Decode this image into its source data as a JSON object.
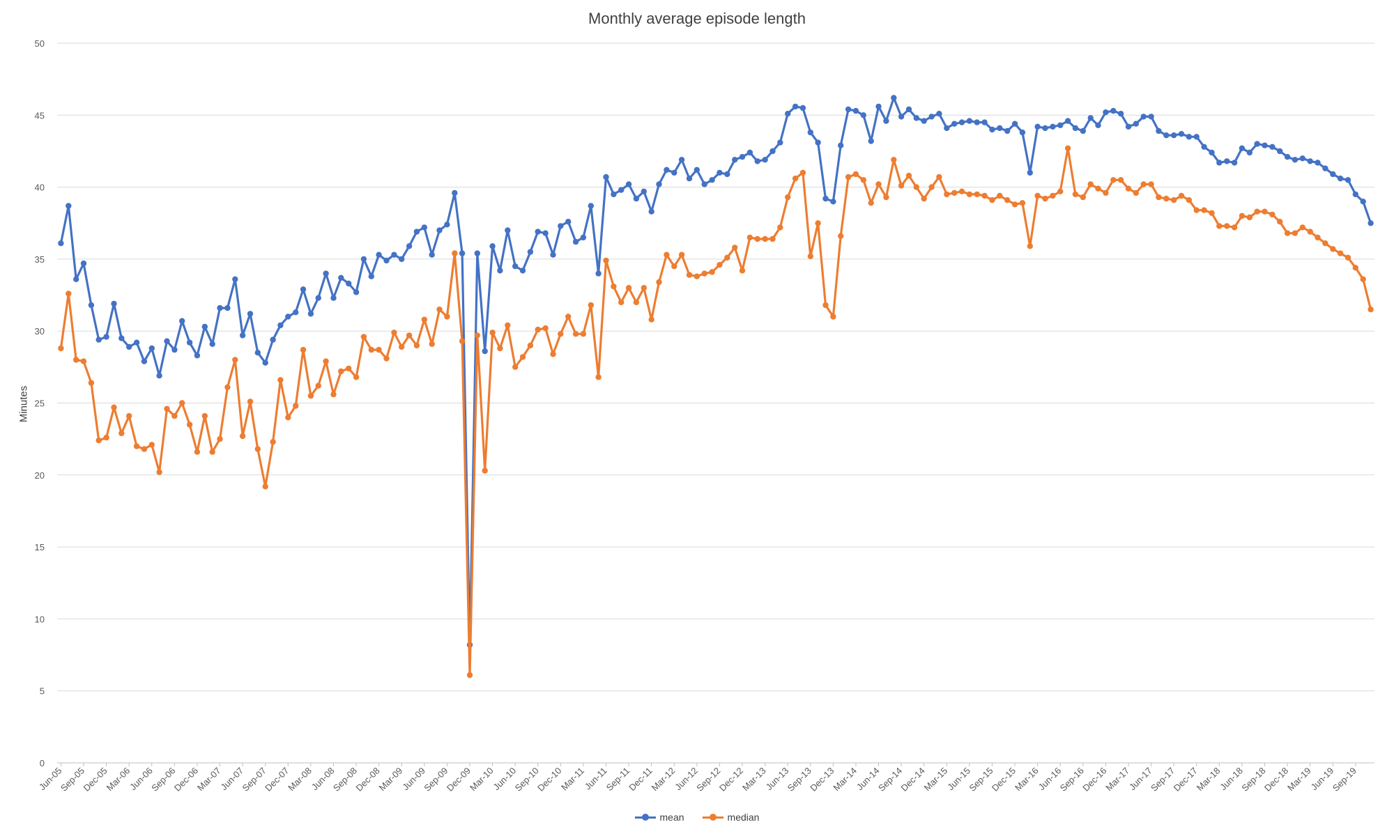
{
  "chart_data": {
    "type": "line",
    "title": "Monthly average episode length",
    "xlabel": "",
    "ylabel": "Minutes",
    "ylim": [
      0,
      50
    ],
    "yticks": [
      0,
      5,
      10,
      15,
      20,
      25,
      30,
      35,
      40,
      45,
      50
    ],
    "grid": true,
    "legend_position": "bottom",
    "x_start": "Jun-05",
    "x_tick_labels": [
      "Jun-05",
      "Sep-05",
      "Dec-05",
      "Mar-06",
      "Jun-06",
      "Sep-06",
      "Dec-06",
      "Mar-07",
      "Jun-07",
      "Sep-07",
      "Dec-07",
      "Mar-08",
      "Jun-08",
      "Sep-08",
      "Dec-08",
      "Mar-09",
      "Jun-09",
      "Sep-09",
      "Dec-09",
      "Mar-10",
      "Jun-10",
      "Sep-10",
      "Dec-10",
      "Mar-11",
      "Jun-11",
      "Sep-11",
      "Dec-11",
      "Mar-12",
      "Jun-12",
      "Sep-12",
      "Dec-12",
      "Mar-13",
      "Jun-13",
      "Sep-13",
      "Dec-13",
      "Mar-14",
      "Jun-14",
      "Sep-14",
      "Dec-14",
      "Mar-15",
      "Jun-15",
      "Sep-15",
      "Dec-15",
      "Mar-16",
      "Jun-16",
      "Sep-16",
      "Dec-16",
      "Mar-17",
      "Jun-17",
      "Sep-17",
      "Dec-17",
      "Mar-18",
      "Jun-18",
      "Sep-18",
      "Dec-18",
      "Mar-19",
      "Jun-19",
      "Sep-19"
    ],
    "series": [
      {
        "name": "mean",
        "color": "#4472C4",
        "values": [
          36.1,
          38.7,
          33.6,
          34.7,
          31.8,
          29.4,
          29.6,
          31.9,
          29.5,
          28.9,
          29.2,
          27.9,
          28.8,
          26.9,
          29.3,
          28.7,
          30.7,
          29.2,
          28.3,
          30.3,
          29.1,
          31.6,
          31.6,
          33.6,
          29.7,
          31.2,
          28.5,
          27.8,
          29.4,
          30.4,
          31.0,
          31.3,
          32.9,
          31.2,
          32.3,
          34.0,
          32.3,
          33.7,
          33.3,
          32.7,
          35.0,
          33.8,
          35.3,
          34.9,
          35.3,
          35.0,
          35.9,
          36.9,
          37.2,
          35.3,
          37.0,
          37.4,
          39.6,
          35.4,
          8.2,
          35.4,
          28.6,
          35.9,
          34.2,
          37.0,
          34.5,
          34.2,
          35.5,
          36.9,
          36.8,
          35.3,
          37.3,
          37.6,
          36.2,
          36.5,
          38.7,
          34.0,
          40.7,
          39.5,
          39.8,
          40.2,
          39.2,
          39.7,
          38.3,
          40.2,
          41.2,
          41.0,
          41.9,
          40.6,
          41.2,
          40.2,
          40.5,
          41.0,
          40.9,
          41.9,
          42.1,
          42.4,
          41.8,
          41.9,
          42.5,
          43.1,
          45.1,
          45.6,
          45.5,
          43.8,
          43.1,
          39.2,
          39.0,
          42.9,
          45.4,
          45.3,
          45.0,
          43.2,
          45.6,
          44.6,
          46.2,
          44.9,
          45.4,
          44.8,
          44.6,
          44.9,
          45.1,
          44.1,
          44.4,
          44.5,
          44.6,
          44.5,
          44.5,
          44.0,
          44.1,
          43.9,
          44.4,
          43.8,
          41.0,
          44.2,
          44.1,
          44.2,
          44.3,
          44.6,
          44.1,
          43.9,
          44.8,
          44.3,
          45.2,
          45.3,
          45.1,
          44.2,
          44.4,
          44.9,
          44.9,
          43.9,
          43.6,
          43.6,
          43.7,
          43.5,
          43.5,
          42.8,
          42.4,
          41.7,
          41.8,
          41.7,
          42.7,
          42.4,
          43.0,
          42.9,
          42.8,
          42.5,
          42.1,
          41.9,
          42.0,
          41.8,
          41.7,
          41.3,
          40.9,
          40.6,
          40.5,
          39.5,
          39.0,
          37.5
        ]
      },
      {
        "name": "median",
        "color": "#ED7D31",
        "values": [
          28.8,
          32.6,
          28.0,
          27.9,
          26.4,
          22.4,
          22.6,
          24.7,
          22.9,
          24.1,
          22.0,
          21.8,
          22.1,
          20.2,
          24.6,
          24.1,
          25.0,
          23.5,
          21.6,
          24.1,
          21.6,
          22.5,
          26.1,
          28.0,
          22.7,
          25.1,
          21.8,
          19.2,
          22.3,
          26.6,
          24.0,
          24.8,
          28.7,
          25.5,
          26.2,
          27.9,
          25.6,
          27.2,
          27.4,
          26.8,
          29.6,
          28.7,
          28.7,
          28.1,
          29.9,
          28.9,
          29.7,
          29.0,
          30.8,
          29.1,
          31.5,
          31.0,
          35.4,
          29.3,
          6.1,
          29.7,
          20.3,
          29.9,
          28.8,
          30.4,
          27.5,
          28.2,
          29.0,
          30.1,
          30.2,
          28.4,
          29.8,
          31.0,
          29.8,
          29.8,
          31.8,
          26.8,
          34.9,
          33.1,
          32.0,
          33.0,
          32.0,
          33.0,
          30.8,
          33.4,
          35.3,
          34.5,
          35.3,
          33.9,
          33.8,
          34.0,
          34.1,
          34.6,
          35.1,
          35.8,
          34.2,
          36.5,
          36.4,
          36.4,
          36.4,
          37.2,
          39.3,
          40.6,
          41.0,
          35.2,
          37.5,
          31.8,
          31.0,
          36.6,
          40.7,
          40.9,
          40.5,
          38.9,
          40.2,
          39.3,
          41.9,
          40.1,
          40.8,
          40.0,
          39.2,
          40.0,
          40.7,
          39.5,
          39.6,
          39.7,
          39.5,
          39.5,
          39.4,
          39.1,
          39.4,
          39.1,
          38.8,
          38.9,
          35.9,
          39.4,
          39.2,
          39.4,
          39.7,
          42.7,
          39.5,
          39.3,
          40.2,
          39.9,
          39.6,
          40.5,
          40.5,
          39.9,
          39.6,
          40.2,
          40.2,
          39.3,
          39.2,
          39.1,
          39.4,
          39.1,
          38.4,
          38.4,
          38.2,
          37.3,
          37.3,
          37.2,
          38.0,
          37.9,
          38.3,
          38.3,
          38.1,
          37.6,
          36.8,
          36.8,
          37.2,
          36.9,
          36.5,
          36.1,
          35.7,
          35.4,
          35.1,
          34.4,
          33.6,
          31.5
        ]
      }
    ]
  }
}
